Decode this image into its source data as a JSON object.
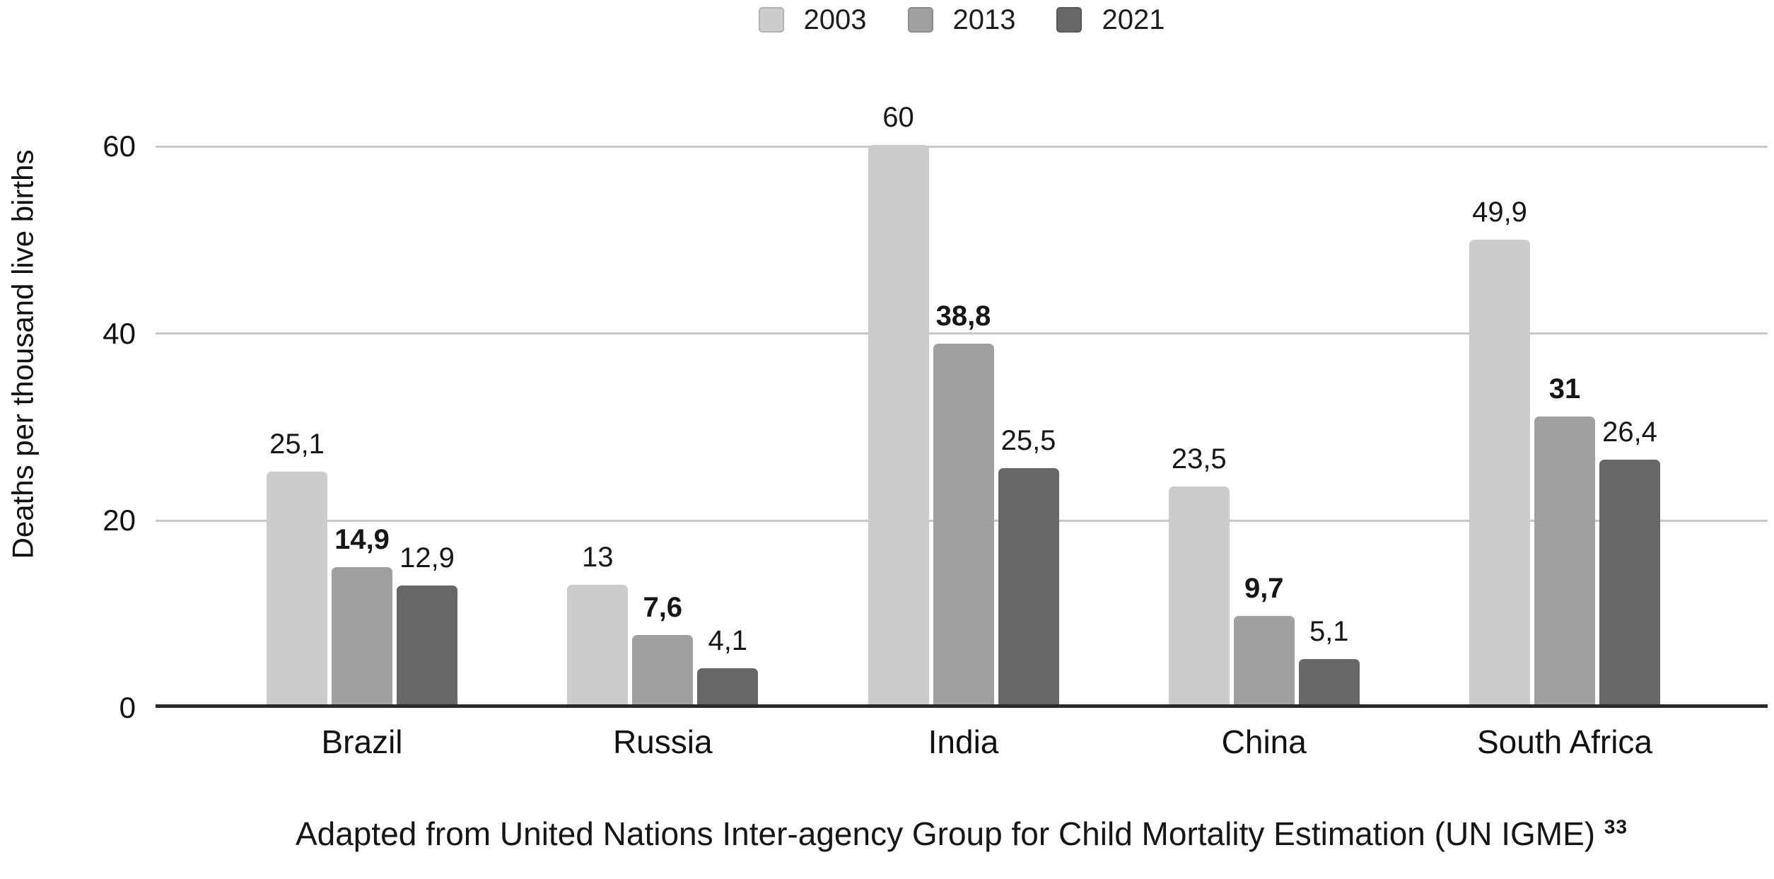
{
  "chart_data": {
    "type": "bar",
    "title": "",
    "ylabel": "Deaths per thousand live births",
    "xlabel": "",
    "categories": [
      "Brazil",
      "Russia",
      "India",
      "China",
      "South Africa"
    ],
    "series": [
      {
        "name": "2003",
        "color": "#cccccc",
        "values": [
          25.1,
          13,
          60,
          23.5,
          49.9
        ],
        "labels": [
          "25,1",
          "13",
          "60",
          "23,5",
          "49,9"
        ],
        "bold_labels": false
      },
      {
        "name": "2013",
        "color": "#a0a0a0",
        "values": [
          14.9,
          7.6,
          38.8,
          9.7,
          31
        ],
        "labels": [
          "14,9",
          "7,6",
          "38,8",
          "9,7",
          "31"
        ],
        "bold_labels": true
      },
      {
        "name": "2021",
        "color": "#676767",
        "values": [
          12.9,
          4.1,
          25.5,
          5.1,
          26.4
        ],
        "labels": [
          "12,9",
          "4,1",
          "25,5",
          "5,1",
          "26,4"
        ],
        "bold_labels": false
      }
    ],
    "yticks": [
      0,
      20,
      40,
      60
    ],
    "ylim": [
      0,
      66
    ],
    "grid": true,
    "legend_position": "top",
    "caption": "Adapted from United Nations Inter-agency Group for Child Mortality Estimation (UN IGME)",
    "caption_superscript": "33"
  }
}
